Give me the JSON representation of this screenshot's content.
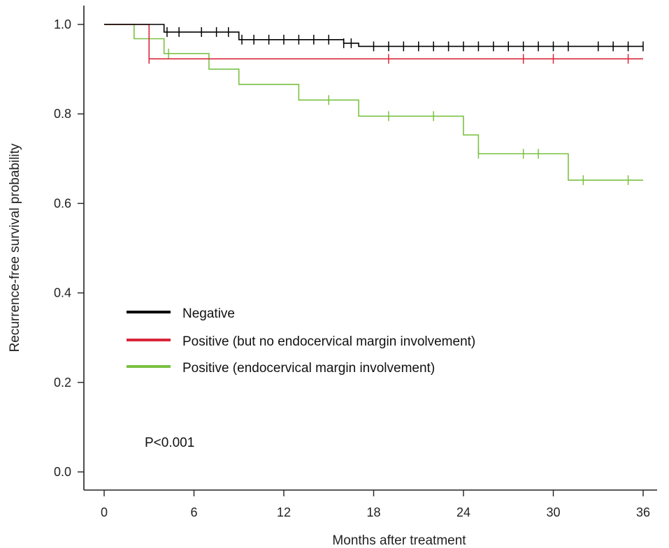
{
  "chart_data": {
    "type": "line",
    "subtype": "kaplan-meier step curves with censor marks",
    "xlabel": "Months after treatment",
    "ylabel": "Recurrence-free survival probability",
    "xlim": [
      0,
      36
    ],
    "ylim": [
      0,
      1
    ],
    "xticks": [
      0,
      6,
      12,
      18,
      24,
      30,
      36
    ],
    "yticks": [
      0.0,
      0.2,
      0.4,
      0.6,
      0.8,
      1.0
    ],
    "xtick_labels": [
      "0",
      "6",
      "12",
      "18",
      "24",
      "30",
      "36"
    ],
    "ytick_labels": [
      "0.0",
      "0.2",
      "0.4",
      "0.6",
      "0.8",
      "1.0"
    ],
    "grid": false,
    "legend_position": "center-left",
    "annotation": "P<0.001",
    "series": [
      {
        "name": "Negative",
        "color": "#000000",
        "steps": [
          [
            0,
            1.0
          ],
          [
            4,
            0.983
          ],
          [
            9,
            0.966
          ],
          [
            16,
            0.958
          ],
          [
            17,
            0.951
          ],
          [
            36,
            0.951
          ]
        ],
        "censored": [
          4.2,
          5,
          6.5,
          7.5,
          8.3,
          9.2,
          10,
          11,
          12,
          13,
          14,
          15,
          16,
          16.5,
          18,
          19,
          20,
          21,
          22,
          23,
          24,
          25,
          26,
          27,
          28,
          29,
          30,
          31,
          33,
          34,
          35,
          36
        ]
      },
      {
        "name": "Positive (but no endocervical margin involvement)",
        "color": "#d9263a",
        "steps": [
          [
            0,
            1.0
          ],
          [
            3,
            0.923
          ],
          [
            36,
            0.923
          ]
        ],
        "censored": [
          3,
          19,
          28,
          30,
          35
        ]
      },
      {
        "name": "Positive (endocervical margin involvement)",
        "color": "#7ac143",
        "steps": [
          [
            0,
            1.0
          ],
          [
            2,
            0.968
          ],
          [
            4,
            0.935
          ],
          [
            7,
            0.9
          ],
          [
            9,
            0.866
          ],
          [
            13,
            0.831
          ],
          [
            17,
            0.795
          ],
          [
            24,
            0.753
          ],
          [
            25,
            0.711
          ],
          [
            31,
            0.652
          ],
          [
            36,
            0.652
          ]
        ],
        "censored": [
          3,
          4.3,
          15,
          19,
          22,
          25,
          28,
          29,
          32,
          35
        ]
      }
    ]
  }
}
